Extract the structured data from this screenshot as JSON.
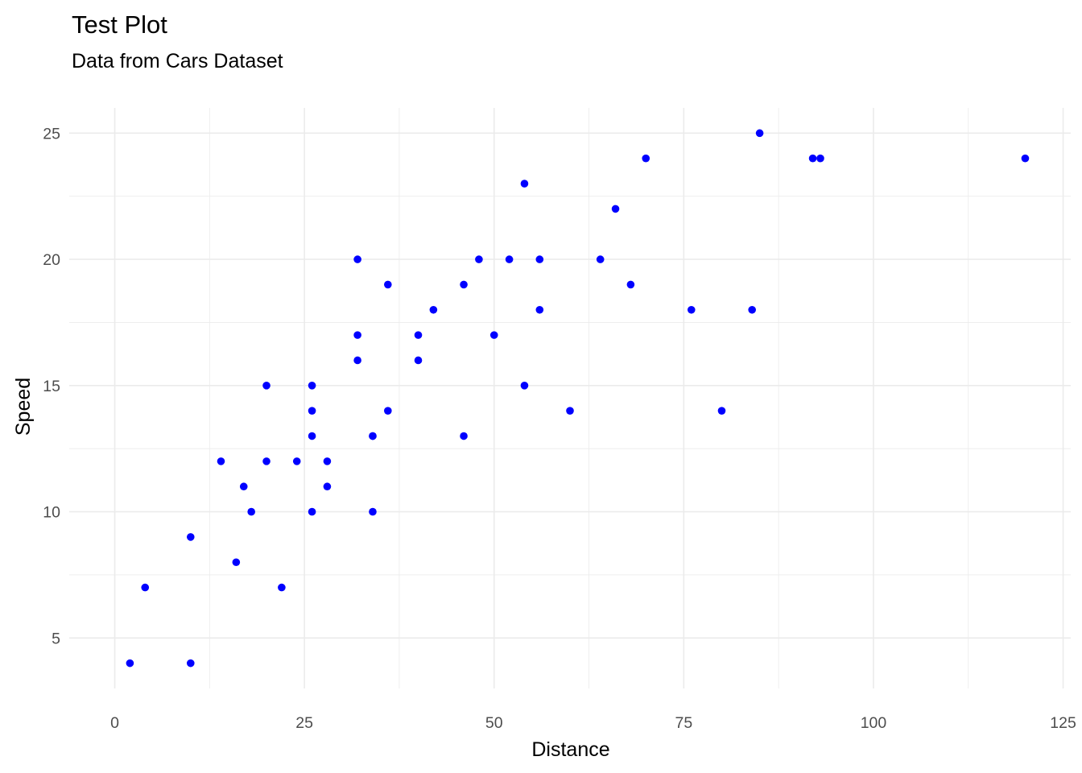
{
  "chart_data": {
    "type": "scatter",
    "title": "Test Plot",
    "subtitle": "Data from Cars Dataset",
    "xlabel": "Distance",
    "ylabel": "Speed",
    "xlim": [
      -6,
      126
    ],
    "ylim": [
      3,
      26
    ],
    "x_ticks": [
      0,
      25,
      50,
      75,
      100,
      125
    ],
    "y_ticks": [
      5,
      10,
      15,
      20,
      25
    ],
    "x_tick_labels": [
      "0",
      "25",
      "50",
      "75",
      "100",
      "125"
    ],
    "y_tick_labels": [
      "5",
      "10",
      "15",
      "20",
      "25"
    ],
    "x_minor_ticks": [
      12.5,
      37.5,
      62.5,
      87.5,
      112.5
    ],
    "y_minor_ticks": [
      7.5,
      12.5,
      17.5,
      22.5
    ],
    "grid": true,
    "point_color": "#0000ff",
    "points": [
      {
        "x": 2,
        "y": 4
      },
      {
        "x": 10,
        "y": 4
      },
      {
        "x": 4,
        "y": 7
      },
      {
        "x": 22,
        "y": 7
      },
      {
        "x": 16,
        "y": 8
      },
      {
        "x": 10,
        "y": 9
      },
      {
        "x": 18,
        "y": 10
      },
      {
        "x": 26,
        "y": 10
      },
      {
        "x": 34,
        "y": 10
      },
      {
        "x": 17,
        "y": 11
      },
      {
        "x": 28,
        "y": 11
      },
      {
        "x": 14,
        "y": 12
      },
      {
        "x": 20,
        "y": 12
      },
      {
        "x": 24,
        "y": 12
      },
      {
        "x": 28,
        "y": 12
      },
      {
        "x": 26,
        "y": 13
      },
      {
        "x": 34,
        "y": 13
      },
      {
        "x": 34,
        "y": 13
      },
      {
        "x": 46,
        "y": 13
      },
      {
        "x": 26,
        "y": 14
      },
      {
        "x": 36,
        "y": 14
      },
      {
        "x": 60,
        "y": 14
      },
      {
        "x": 80,
        "y": 14
      },
      {
        "x": 20,
        "y": 15
      },
      {
        "x": 26,
        "y": 15
      },
      {
        "x": 54,
        "y": 15
      },
      {
        "x": 32,
        "y": 16
      },
      {
        "x": 40,
        "y": 16
      },
      {
        "x": 32,
        "y": 17
      },
      {
        "x": 40,
        "y": 17
      },
      {
        "x": 50,
        "y": 17
      },
      {
        "x": 42,
        "y": 18
      },
      {
        "x": 56,
        "y": 18
      },
      {
        "x": 76,
        "y": 18
      },
      {
        "x": 84,
        "y": 18
      },
      {
        "x": 36,
        "y": 19
      },
      {
        "x": 46,
        "y": 19
      },
      {
        "x": 68,
        "y": 19
      },
      {
        "x": 32,
        "y": 20
      },
      {
        "x": 48,
        "y": 20
      },
      {
        "x": 52,
        "y": 20
      },
      {
        "x": 56,
        "y": 20
      },
      {
        "x": 64,
        "y": 20
      },
      {
        "x": 66,
        "y": 22
      },
      {
        "x": 54,
        "y": 23
      },
      {
        "x": 70,
        "y": 24
      },
      {
        "x": 92,
        "y": 24
      },
      {
        "x": 93,
        "y": 24
      },
      {
        "x": 120,
        "y": 24
      },
      {
        "x": 85,
        "y": 25
      }
    ]
  }
}
